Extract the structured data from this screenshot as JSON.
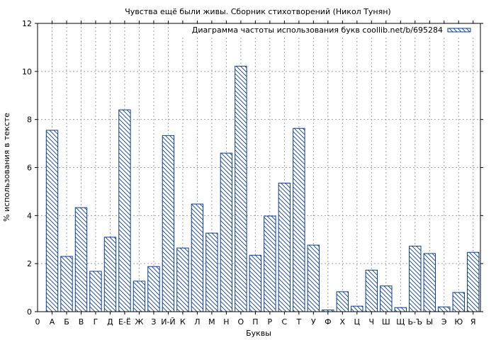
{
  "chart_data": {
    "type": "bar",
    "title": "Чувства ещё были живы. Сборник стихотворений (Никол Тунян)",
    "xlabel": "Буквы",
    "ylabel": "% использования в тексте",
    "legend": {
      "label": "Диаграмма частоты использования букв coollib.net/b/695284",
      "placement": "top-right"
    },
    "x_origin_label": "0",
    "categories": [
      "А",
      "Б",
      "В",
      "Г",
      "Д",
      "Е-Ё",
      "Ж",
      "З",
      "И-Й",
      "К",
      "Л",
      "М",
      "Н",
      "О",
      "П",
      "Р",
      "С",
      "Т",
      "У",
      "Ф",
      "Х",
      "Ц",
      "Ч",
      "Ш",
      "Щ",
      "Ь-Ъ",
      "Ы",
      "Э",
      "Ю",
      "Я"
    ],
    "values": [
      7.55,
      2.3,
      4.33,
      1.68,
      3.1,
      8.4,
      1.27,
      1.88,
      7.33,
      2.65,
      4.48,
      3.27,
      6.6,
      10.22,
      2.35,
      3.98,
      5.35,
      7.63,
      2.77,
      0.07,
      0.83,
      0.23,
      1.73,
      1.07,
      0.17,
      2.73,
      2.42,
      0.2,
      0.8,
      2.47
    ],
    "ylim": [
      0,
      12
    ],
    "yticks": [
      0,
      2,
      4,
      6,
      8,
      10,
      12
    ],
    "grid": true,
    "colors": {
      "bar_stroke": "#0b3d91",
      "hatch": "#0b3d91",
      "grid": "#a0a0a0"
    }
  }
}
